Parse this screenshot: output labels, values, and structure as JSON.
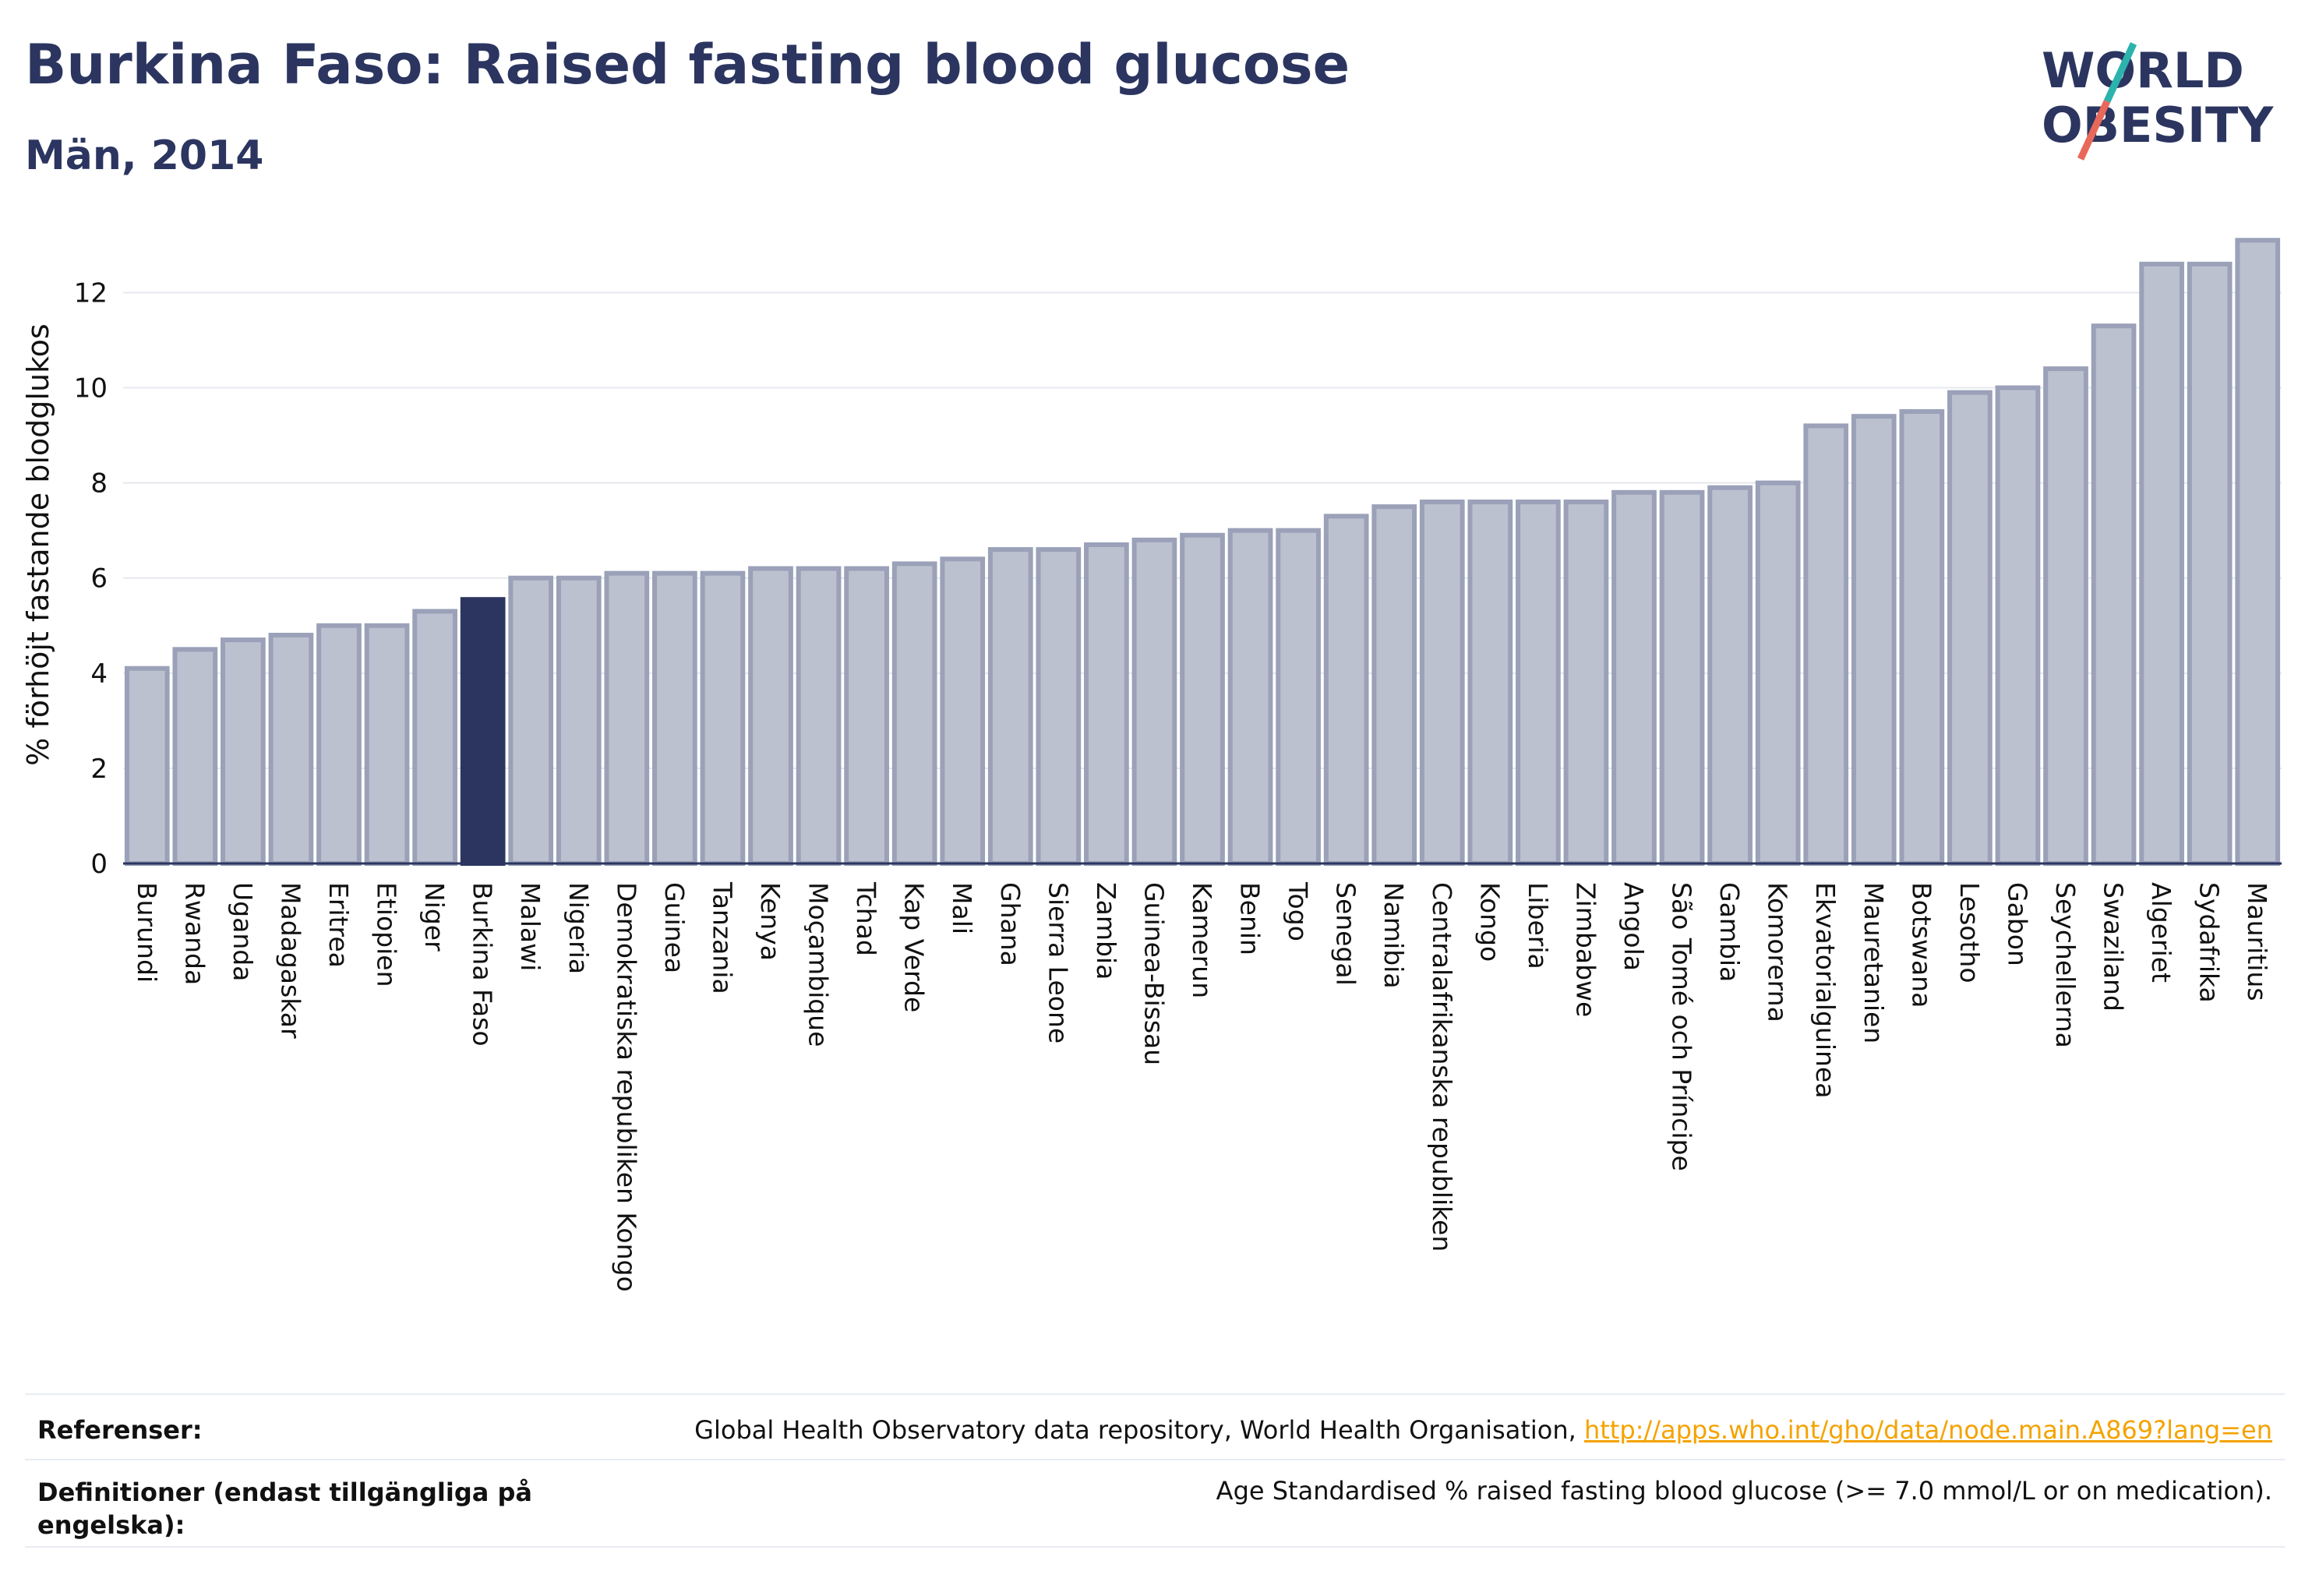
{
  "header": {
    "title": "Burkina Faso: Raised fasting blood glucose",
    "subtitle": "Män, 2014"
  },
  "logo": {
    "line1": "WORLD",
    "line2": "OBESITY",
    "colors": {
      "text": "#2b3560",
      "slash_top": "#2bb3ad",
      "slash_bottom": "#e8685a"
    }
  },
  "colors": {
    "bar_default": "#bcc1d0",
    "bar_border": "#9aa1b8",
    "bar_highlight": "#2b3560",
    "grid": "#e6e8ee",
    "axis": "#2b3560",
    "link": "#f4a300"
  },
  "chart_data": {
    "type": "bar",
    "title": "",
    "xlabel": "",
    "ylabel": "% förhöjt fastande blodglukos",
    "ylim": [
      0,
      13.4
    ],
    "yticks": [
      0,
      2,
      4,
      6,
      8,
      10,
      12
    ],
    "grid": true,
    "highlight": "Burkina Faso",
    "categories": [
      "Burundi",
      "Rwanda",
      "Uganda",
      "Madagaskar",
      "Eritrea",
      "Etiopien",
      "Niger",
      "Burkina Faso",
      "Malawi",
      "Nigeria",
      "Demokratiska republiken Kongo",
      "Guinea",
      "Tanzania",
      "Kenya",
      "Moçambique",
      "Tchad",
      "Kap Verde",
      "Mali",
      "Ghana",
      "Sierra Leone",
      "Zambia",
      "Guinea-Bissau",
      "Kamerun",
      "Benin",
      "Togo",
      "Senegal",
      "Namibia",
      "Centralafrikanska republiken",
      "Kongo",
      "Liberia",
      "Zimbabwe",
      "Angola",
      "São Tomé och Príncipe",
      "Gambia",
      "Komorerna",
      "Ekvatorialguinea",
      "Mauretanien",
      "Botswana",
      "Lesotho",
      "Gabon",
      "Seychellerna",
      "Swaziland",
      "Algeriet",
      "Sydafrika",
      "Mauritius"
    ],
    "values": [
      4.1,
      4.5,
      4.7,
      4.8,
      5.0,
      5.0,
      5.3,
      5.55,
      6.0,
      6.0,
      6.1,
      6.1,
      6.1,
      6.2,
      6.2,
      6.2,
      6.3,
      6.4,
      6.6,
      6.6,
      6.7,
      6.8,
      6.9,
      7.0,
      7.0,
      7.3,
      7.5,
      7.6,
      7.6,
      7.6,
      7.6,
      7.8,
      7.8,
      7.9,
      8.0,
      9.2,
      9.4,
      9.5,
      9.9,
      10.0,
      10.4,
      11.3,
      12.6,
      12.6,
      13.1
    ]
  },
  "footer": {
    "references_label": "Referenser:",
    "references_text": "Global Health Observatory data repository, World Health Organisation, ",
    "references_link": "http://apps.who.int/gho/data/node.main.A869?lang=en",
    "definitions_label_line1": "Definitioner (endast tillgängliga på",
    "definitions_label_line2": "engelska):",
    "definitions_text": "Age Standardised % raised fasting blood glucose (>= 7.0 mmol/L or on medication)."
  }
}
